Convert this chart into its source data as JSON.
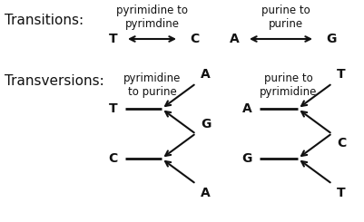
{
  "background_color": "#ffffff",
  "title_fontsize": 11,
  "label_fontsize": 8.5,
  "arrow_color": "#111111",
  "text_color": "#111111",
  "transitions_label": "Transitions:",
  "transversions_label": "Transversions:",
  "transition1_label": "pyrimidine to\npyrimdine",
  "transition2_label": "purine to\npurine",
  "transversion1_label": "pyrimidine\nto purine",
  "transversion2_label": "purine to\npyrimidine",
  "trans1_left": "T",
  "trans1_right": "C",
  "trans2_left": "A",
  "trans2_right": "G",
  "tv1_stem": "T",
  "tv1_up": "A",
  "tv1_down_stem": "C",
  "tv1_up2": "G",
  "tv1_down2": "A",
  "tv2_stem": "A",
  "tv2_up": "T",
  "tv2_down_stem": "G",
  "tv2_up2": "C",
  "tv2_down2": "T"
}
